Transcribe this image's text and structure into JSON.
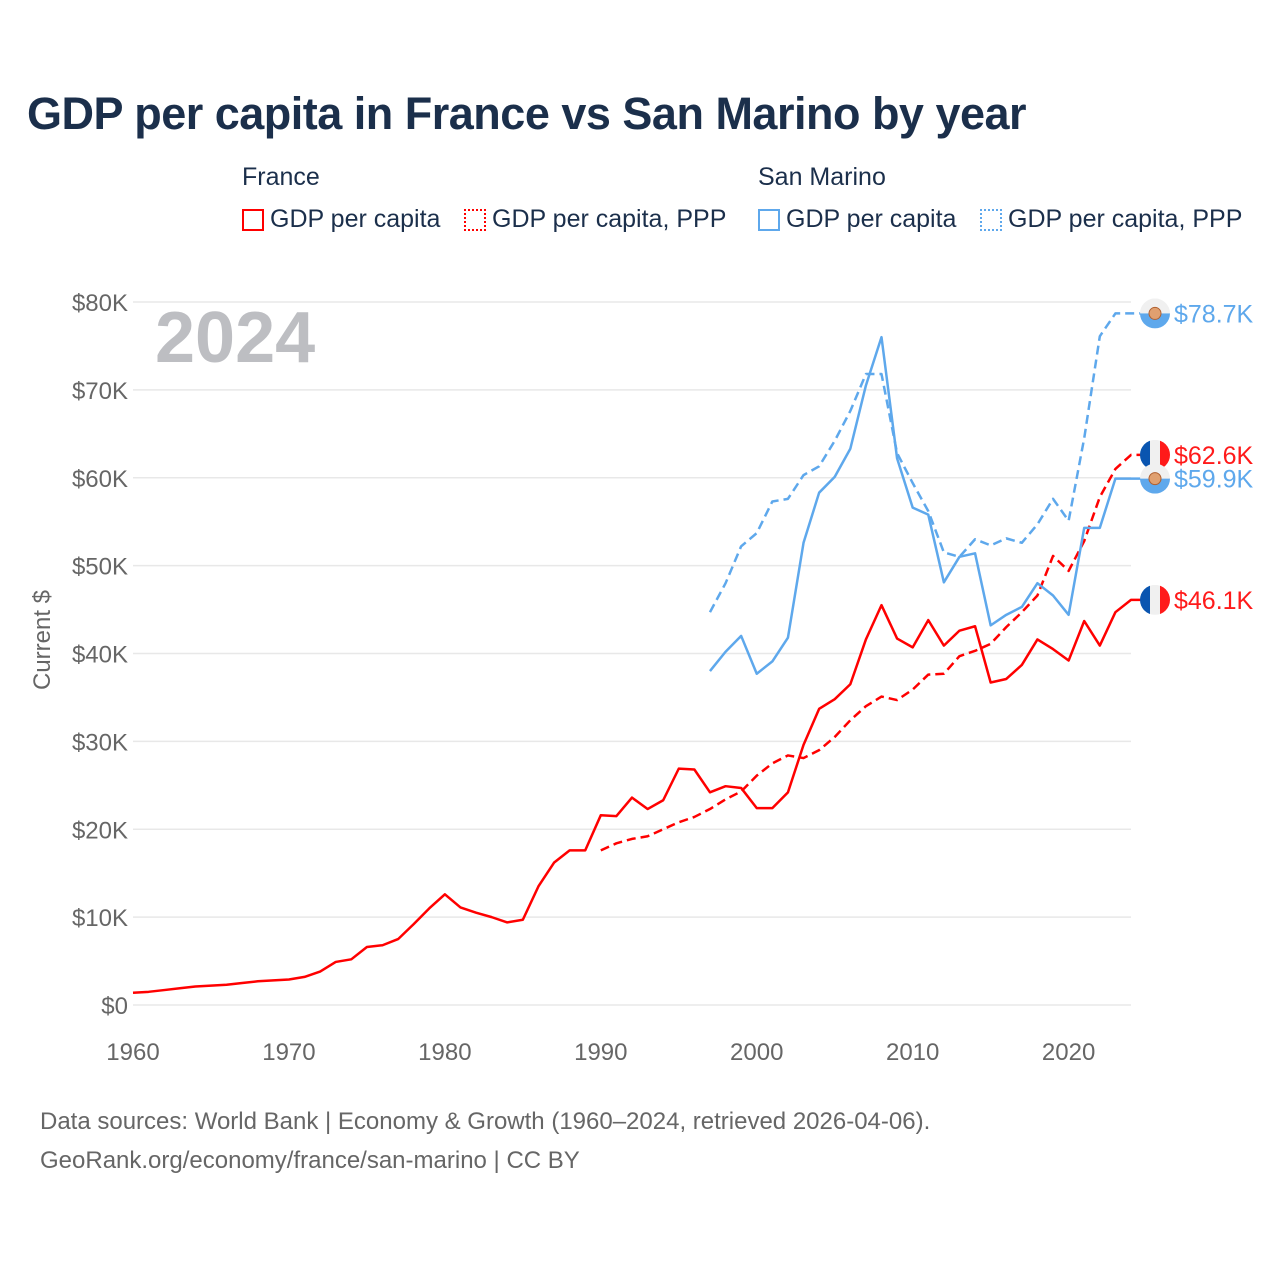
{
  "title": "GDP per capita in France vs San Marino by year",
  "legend": {
    "groups": [
      {
        "name": "France",
        "items": [
          {
            "label": "GDP per capita",
            "style": "solid",
            "color": "#ff0000"
          },
          {
            "label": "GDP per capita, PPP",
            "style": "dotted",
            "color": "#ff0000"
          }
        ]
      },
      {
        "name": "San Marino",
        "items": [
          {
            "label": "GDP per capita",
            "style": "solid",
            "color": "#5ea8ec"
          },
          {
            "label": "GDP per capita, PPP",
            "style": "dotted",
            "color": "#5ea8ec"
          }
        ]
      }
    ]
  },
  "sources": {
    "line1": "Data sources: World Bank | Economy & Growth (1960–2024, retrieved 2026-04-06).",
    "line2": "GeoRank.org/economy/france/san-marino | CC BY"
  },
  "chart_data": {
    "type": "line",
    "title": "GDP per capita in France vs San Marino by year",
    "year_watermark": "2024",
    "xlabel": "",
    "ylabel": "Current $",
    "xlim": [
      1960,
      2024
    ],
    "ylim": [
      0,
      80000
    ],
    "x_ticks": [
      "1960",
      "1970",
      "1980",
      "1990",
      "2000",
      "2010",
      "2020"
    ],
    "y_ticks": [
      "$0",
      "$10K",
      "$20K",
      "$30K",
      "$40K",
      "$50K",
      "$60K",
      "$70K",
      "$80K"
    ],
    "grid": true,
    "series": [
      {
        "name": "France GDP per capita",
        "color": "#ff0000",
        "dash": false,
        "start": 1960,
        "end_label": "$46.1K",
        "flag": "france",
        "values": [
          1.4,
          1.5,
          1.7,
          1.9,
          2.1,
          2.2,
          2.3,
          2.5,
          2.7,
          2.8,
          2.9,
          3.2,
          3.8,
          4.9,
          5.2,
          6.6,
          6.8,
          7.5,
          9.2,
          11.0,
          12.6,
          11.1,
          10.5,
          10.0,
          9.4,
          9.7,
          13.5,
          16.2,
          17.6,
          17.6,
          21.6,
          21.5,
          23.6,
          22.3,
          23.3,
          26.9,
          26.8,
          24.2,
          24.9,
          24.7,
          22.4,
          22.4,
          24.2,
          29.6,
          33.7,
          34.8,
          36.5,
          41.6,
          45.5,
          41.7,
          40.7,
          43.8,
          40.9,
          42.6,
          43.1,
          36.7,
          37.1,
          38.7,
          41.6,
          40.5,
          39.2,
          43.7,
          40.9,
          44.7,
          46.1
        ]
      },
      {
        "name": "France GDP per capita, PPP",
        "color": "#ff0000",
        "dash": true,
        "start": 1990,
        "end_label": "$62.6K",
        "flag": "france",
        "values": [
          17.6,
          18.4,
          18.9,
          19.2,
          20.0,
          20.8,
          21.4,
          22.3,
          23.4,
          24.3,
          26.1,
          27.5,
          28.4,
          28.1,
          29.0,
          30.5,
          32.4,
          34.0,
          35.1,
          34.7,
          35.9,
          37.6,
          37.7,
          39.7,
          40.3,
          41.1,
          43.0,
          44.7,
          46.6,
          51.1,
          49.4,
          52.8,
          57.8,
          61.0,
          62.6
        ]
      },
      {
        "name": "San Marino GDP per capita",
        "color": "#5ea8ec",
        "dash": false,
        "start": 1997,
        "end_label": "$59.9K",
        "flag": "san-marino",
        "values": [
          38.0,
          40.2,
          42.0,
          37.7,
          39.1,
          41.8,
          52.6,
          58.3,
          60.1,
          63.3,
          70.5,
          76.0,
          62.2,
          56.6,
          55.8,
          48.1,
          51.0,
          51.4,
          43.2,
          44.4,
          45.3,
          48.0,
          46.6,
          44.4,
          54.3,
          54.3,
          59.9,
          59.9
        ]
      },
      {
        "name": "San Marino GDP per capita, PPP",
        "color": "#5ea8ec",
        "dash": true,
        "start": 1997,
        "end_label": "$78.7K",
        "flag": "san-marino",
        "values": [
          44.7,
          48.0,
          52.2,
          53.7,
          57.3,
          57.6,
          60.3,
          61.3,
          64.2,
          67.6,
          71.8,
          71.8,
          62.8,
          59.4,
          56.2,
          51.5,
          51.0,
          53.0,
          52.3,
          53.1,
          52.6,
          54.7,
          57.6,
          55.1,
          64.5,
          76.1,
          78.7,
          78.7
        ]
      }
    ],
    "value_unit": "thousand USD"
  }
}
